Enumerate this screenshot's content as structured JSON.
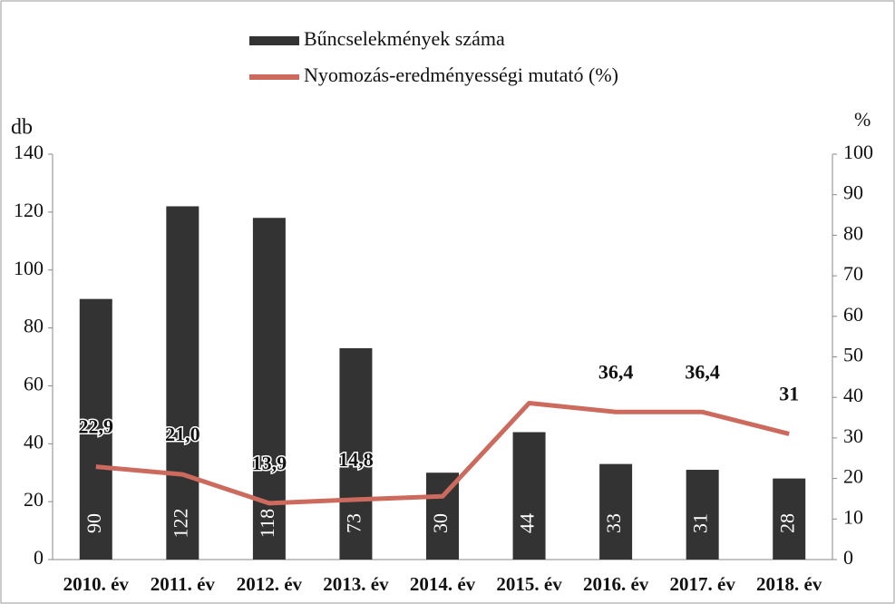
{
  "chart_data": {
    "type": "bar-line",
    "categories": [
      "2010. év",
      "2011. év",
      "2012. év",
      "2013. év",
      "2014. év",
      "2015. év",
      "2016. év",
      "2017. év",
      "2018. év"
    ],
    "series": [
      {
        "name": "Bűncselekmények száma",
        "color": "#333333",
        "type": "bar",
        "values": [
          90,
          122,
          118,
          73,
          30,
          44,
          33,
          31,
          28
        ]
      },
      {
        "name": "Nyomozás-eredményességi mutató (%)",
        "color": "#cc6a5e",
        "type": "line",
        "axis": "y2",
        "values": [
          22.9,
          21.0,
          13.9,
          14.8,
          15.6,
          38.6,
          36.4,
          36.4,
          31
        ],
        "value_labels": [
          "22,9",
          "21,0",
          "13,9",
          "14,8",
          null,
          null,
          "36,4",
          "36,4",
          "31"
        ]
      }
    ],
    "ylabel": "db",
    "y2label": "%",
    "ylim": [
      0,
      140
    ],
    "yticks": [
      0,
      20,
      40,
      60,
      80,
      100,
      120,
      140
    ],
    "y2lim": [
      0,
      100
    ],
    "y2ticks": [
      0,
      10,
      20,
      30,
      40,
      50,
      60,
      70,
      80,
      90,
      100
    ]
  }
}
